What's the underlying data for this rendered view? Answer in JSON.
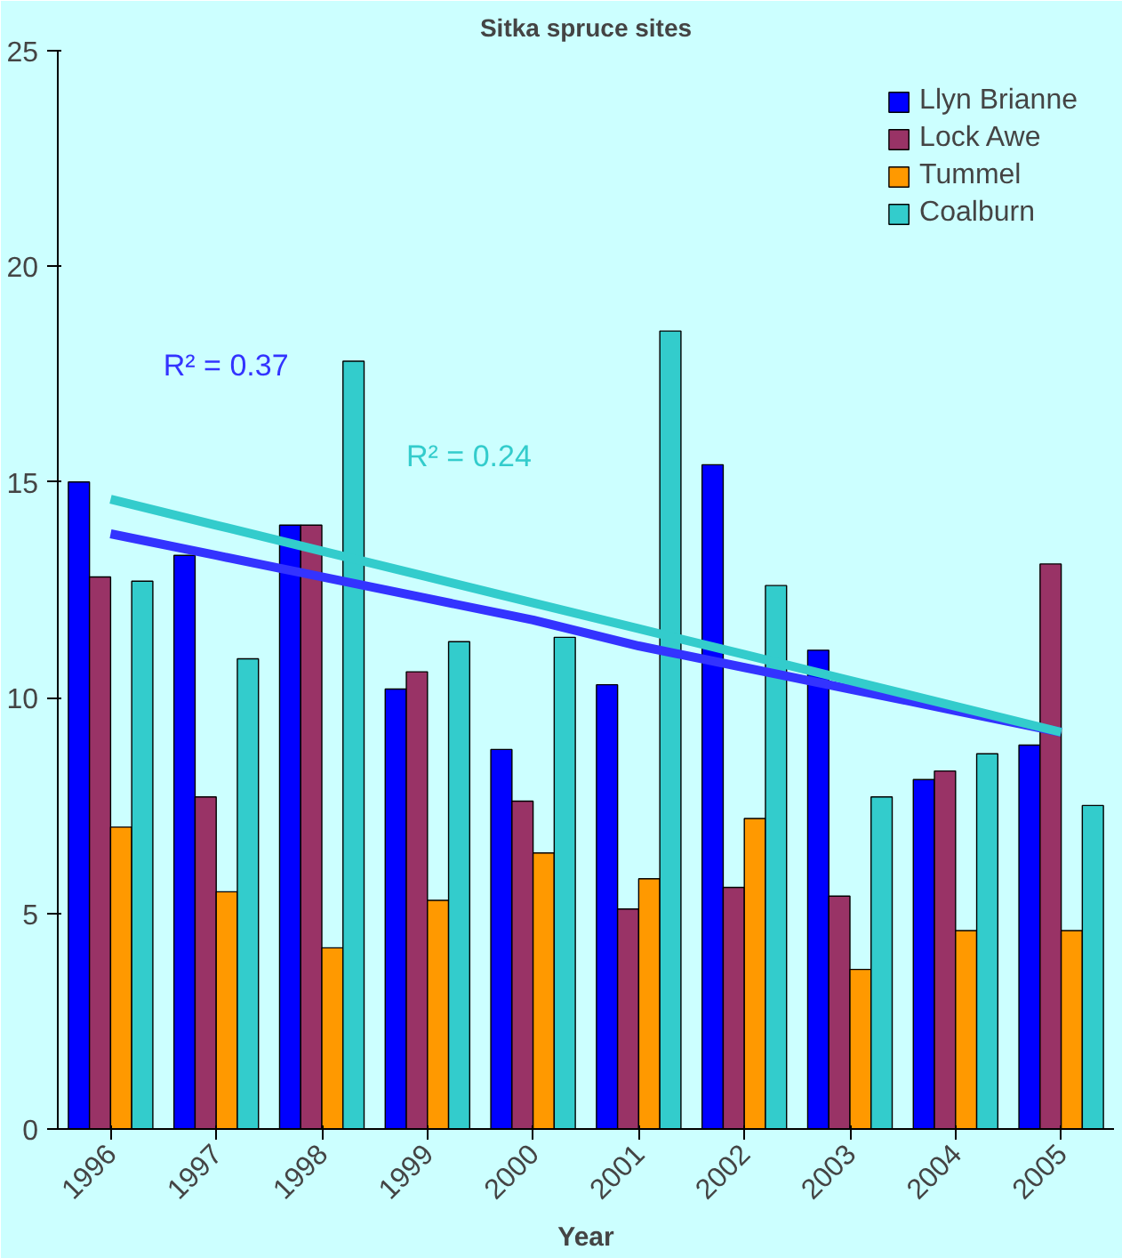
{
  "chart_data": {
    "type": "bar",
    "title": "Sitka spruce sites",
    "xlabel": "Year",
    "categories": [
      "1996",
      "1997",
      "1998",
      "1999",
      "2000",
      "2001",
      "2002",
      "2003",
      "2004",
      "2005"
    ],
    "series": [
      {
        "name": "Llyn Brianne",
        "color": "#0000ff",
        "values": [
          15.0,
          13.3,
          14.0,
          10.2,
          8.8,
          10.3,
          15.4,
          11.1,
          8.1,
          8.9
        ]
      },
      {
        "name": "Lock Awe",
        "color": "#993366",
        "values": [
          12.8,
          7.7,
          14.0,
          10.6,
          7.6,
          5.1,
          5.6,
          5.4,
          8.3,
          13.1
        ]
      },
      {
        "name": "Tummel",
        "color": "#ff9900",
        "values": [
          7.0,
          5.5,
          4.2,
          5.3,
          6.4,
          5.8,
          7.2,
          3.7,
          4.6,
          4.6
        ]
      },
      {
        "name": "Coalburn",
        "color": "#33cccc",
        "values": [
          12.7,
          10.9,
          17.8,
          11.3,
          11.4,
          18.5,
          12.6,
          7.7,
          8.7,
          7.5
        ]
      },
      {
        "type": "line",
        "color": "#3333ff",
        "values": [
          13.8,
          13.3,
          12.8,
          12.3,
          11.8,
          11.2,
          10.7,
          10.2,
          9.7,
          9.2
        ]
      },
      {
        "type": "line",
        "color": "#33cccc",
        "values": [
          14.6,
          14.0,
          13.4,
          12.8,
          12.2,
          11.6,
          11.0,
          10.4,
          9.8,
          9.2
        ]
      }
    ],
    "annotations": [
      "R² = 0.37",
      "R² = 0.24"
    ],
    "ylim": [
      0,
      25
    ],
    "yticks": [
      0,
      5,
      10,
      15,
      20,
      25
    ],
    "grid": false,
    "legend": "top right"
  }
}
